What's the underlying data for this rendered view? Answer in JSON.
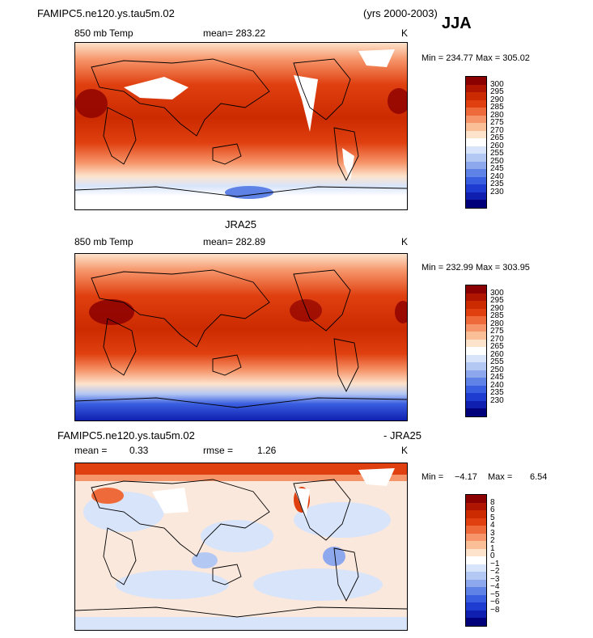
{
  "header": {
    "case_title": "FAMIPC5.ne120.ys.tau5m.02",
    "years": "(yrs 2000-2003)",
    "season": "JJA"
  },
  "panels": [
    {
      "title": "",
      "variable": "850 mb Temp",
      "mean": "mean= 283.22",
      "units": "K",
      "range": "Min = 234.77 Max = 305.02",
      "colorbar": [
        "300",
        "295",
        "290",
        "285",
        "280",
        "275",
        "270",
        "265",
        "260",
        "255",
        "250",
        "245",
        "240",
        "235",
        "230"
      ],
      "colors": [
        "#8b0000",
        "#b01500",
        "#cc2a00",
        "#e04010",
        "#ee6a3a",
        "#f6956a",
        "#fbbf98",
        "#fde3cc",
        "#ffffff",
        "#d8e4fa",
        "#b4c8f4",
        "#8ea8ee",
        "#5e82e6",
        "#3a5ee0",
        "#1e3cd0",
        "#0f1fb0",
        "#00007a"
      ],
      "fill_colors": [
        "#d63a10",
        "#e96a3a",
        "#f6a07a",
        "#fbc9a8"
      ]
    },
    {
      "title": "JRA25",
      "variable": "850 mb Temp",
      "mean": "mean= 282.89",
      "units": "K",
      "range": "Min = 232.99 Max = 303.95",
      "colorbar": [
        "300",
        "295",
        "290",
        "285",
        "280",
        "275",
        "270",
        "265",
        "260",
        "255",
        "250",
        "245",
        "240",
        "235",
        "230"
      ],
      "colors": [
        "#8b0000",
        "#b01500",
        "#cc2a00",
        "#e04010",
        "#ee6a3a",
        "#f6956a",
        "#fbbf98",
        "#fde3cc",
        "#ffffff",
        "#d8e4fa",
        "#b4c8f4",
        "#8ea8ee",
        "#5e82e6",
        "#3a5ee0",
        "#1e3cd0",
        "#0f1fb0",
        "#00007a"
      ],
      "fill_colors": [
        "#d63a10",
        "#e96a3a",
        "#f6a07a",
        "#fbc9a8"
      ]
    },
    {
      "title": "FAMIPC5.ne120.ys.tau5m.02",
      "title_right": "- JRA25",
      "mean_label": "mean =",
      "mean_value": "0.33",
      "rmse_label": "rmse =",
      "rmse_value": "1.26",
      "units": "K",
      "range_min_label": "Min =",
      "range_min": "−4.17",
      "range_max_label": "Max =",
      "range_max": "6.54",
      "colorbar": [
        "8",
        "6",
        "5",
        "4",
        "3",
        "2",
        "1",
        "0",
        "−1",
        "−2",
        "−3",
        "−4",
        "−5",
        "−6",
        "−8"
      ],
      "colors": [
        "#8b0000",
        "#b01500",
        "#cc2a00",
        "#e04010",
        "#ee6a3a",
        "#f6956a",
        "#fbbf98",
        "#fde3cc",
        "#ffffff",
        "#d8e4fa",
        "#b4c8f4",
        "#8ea8ee",
        "#5e82e6",
        "#3a5ee0",
        "#1e3cd0",
        "#0f1fb0",
        "#00007a"
      ],
      "fill_colors": [
        "#fbe0d0",
        "#d6e2f8",
        "#fbe0d0"
      ]
    }
  ]
}
